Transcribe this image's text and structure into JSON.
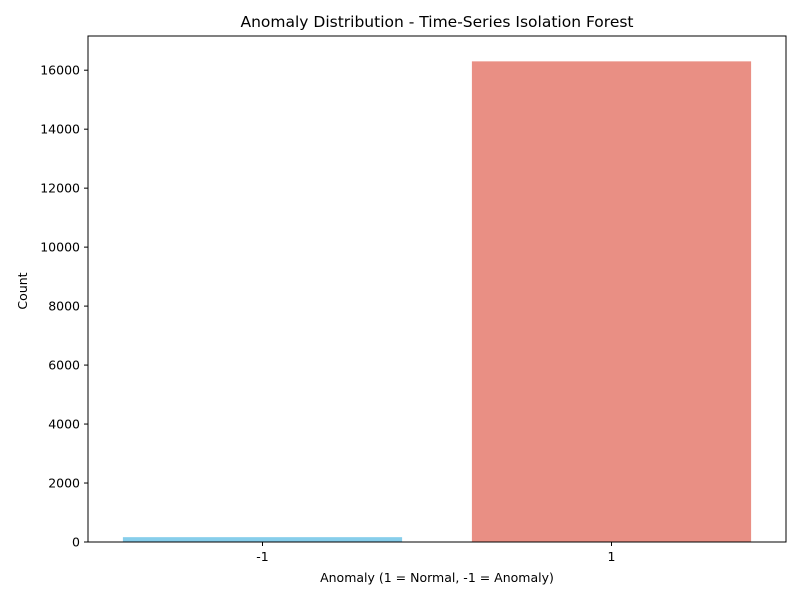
{
  "chart_data": {
    "type": "bar",
    "title": "Anomaly Distribution - Time-Series Isolation Forest",
    "xlabel": "Anomaly (1 = Normal, -1 = Anomaly)",
    "ylabel": "Count",
    "categories": [
      "-1",
      "1"
    ],
    "values": [
      164,
      16300
    ],
    "colors": [
      "#87CEEB",
      "#E98F84"
    ],
    "ylim": [
      0,
      17160
    ],
    "yticks": [
      0,
      2000,
      4000,
      6000,
      8000,
      10000,
      12000,
      14000,
      16000
    ],
    "grid": false,
    "legend": "none"
  }
}
